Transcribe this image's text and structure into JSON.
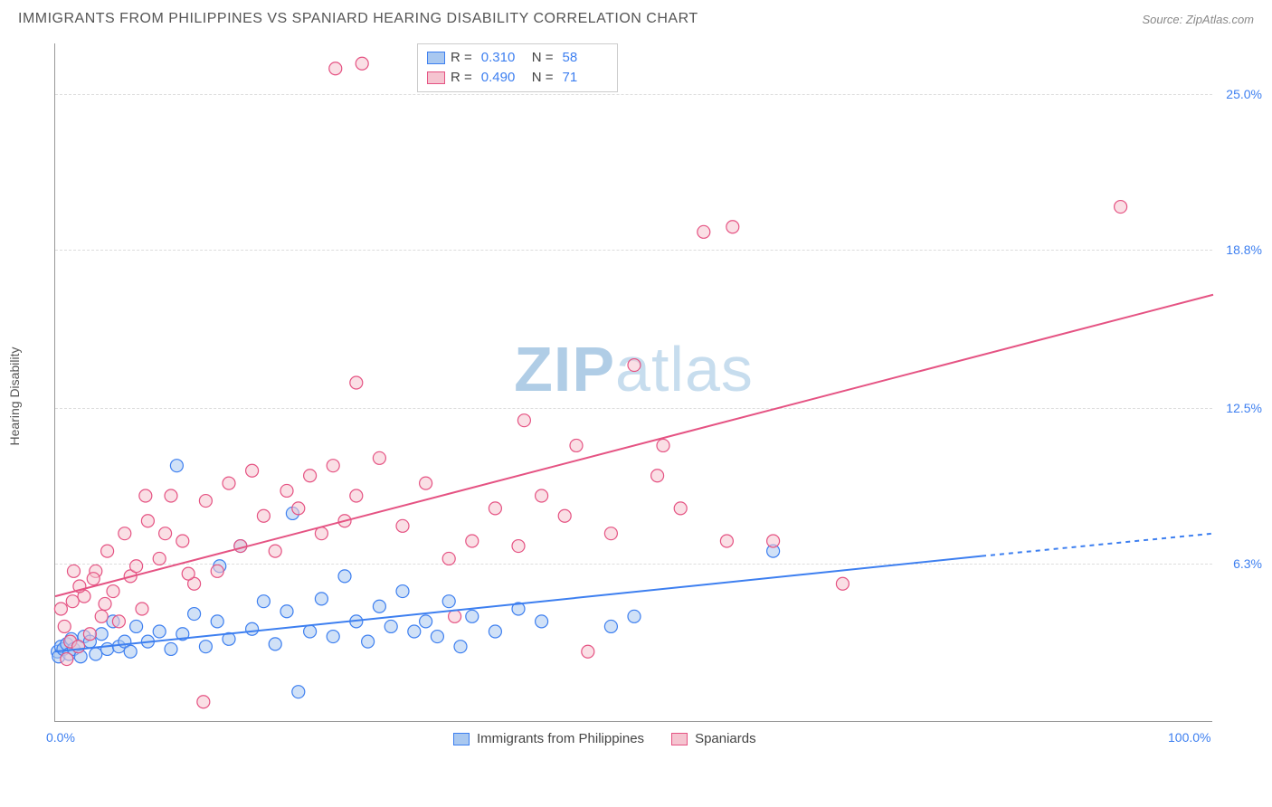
{
  "title": "IMMIGRANTS FROM PHILIPPINES VS SPANIARD HEARING DISABILITY CORRELATION CHART",
  "source": "Source: ZipAtlas.com",
  "ylabel": "Hearing Disability",
  "watermark": {
    "zip": "ZIP",
    "rest": "atlas"
  },
  "chart": {
    "type": "scatter",
    "background_color": "#ffffff",
    "grid_color": "#dddddd",
    "axis_color": "#999999",
    "xlim": [
      0,
      100
    ],
    "ylim": [
      0,
      27
    ],
    "y_ticks": [
      {
        "value": 6.3,
        "label": "6.3%"
      },
      {
        "value": 12.5,
        "label": "12.5%"
      },
      {
        "value": 18.8,
        "label": "18.8%"
      },
      {
        "value": 25.0,
        "label": "25.0%"
      }
    ],
    "x_ticks": [
      {
        "value": 0,
        "label": "0.0%"
      },
      {
        "value": 100,
        "label": "100.0%"
      }
    ],
    "marker_radius": 7,
    "marker_stroke_width": 1.2,
    "marker_opacity": 0.55,
    "line_width": 2,
    "series": [
      {
        "name": "Immigrants from Philippines",
        "fill_color": "#a9c8f0",
        "stroke_color": "#3d7ff0",
        "R": "0.310",
        "N": "58",
        "trend": {
          "x1": 0,
          "y1": 2.8,
          "x2": 80,
          "y2": 6.6,
          "dash_x2": 100,
          "dash_y2": 7.5,
          "dash_pattern": "5,5"
        },
        "points": [
          {
            "x": 0.2,
            "y": 2.8
          },
          {
            "x": 0.3,
            "y": 2.6
          },
          {
            "x": 0.5,
            "y": 3.0
          },
          {
            "x": 0.7,
            "y": 2.9
          },
          {
            "x": 1.0,
            "y": 3.1
          },
          {
            "x": 1.2,
            "y": 2.7
          },
          {
            "x": 1.4,
            "y": 3.3
          },
          {
            "x": 1.6,
            "y": 2.9
          },
          {
            "x": 2.0,
            "y": 3.0
          },
          {
            "x": 2.2,
            "y": 2.6
          },
          {
            "x": 2.5,
            "y": 3.4
          },
          {
            "x": 3.0,
            "y": 3.2
          },
          {
            "x": 3.5,
            "y": 2.7
          },
          {
            "x": 4.0,
            "y": 3.5
          },
          {
            "x": 4.5,
            "y": 2.9
          },
          {
            "x": 5.0,
            "y": 4.0
          },
          {
            "x": 5.5,
            "y": 3.0
          },
          {
            "x": 6.0,
            "y": 3.2
          },
          {
            "x": 6.5,
            "y": 2.8
          },
          {
            "x": 7.0,
            "y": 3.8
          },
          {
            "x": 8.0,
            "y": 3.2
          },
          {
            "x": 9.0,
            "y": 3.6
          },
          {
            "x": 10.0,
            "y": 2.9
          },
          {
            "x": 11.0,
            "y": 3.5
          },
          {
            "x": 12.0,
            "y": 4.3
          },
          {
            "x": 13.0,
            "y": 3.0
          },
          {
            "x": 14.0,
            "y": 4.0
          },
          {
            "x": 15.0,
            "y": 3.3
          },
          {
            "x": 16.0,
            "y": 7.0
          },
          {
            "x": 17.0,
            "y": 3.7
          },
          {
            "x": 18.0,
            "y": 4.8
          },
          {
            "x": 19.0,
            "y": 3.1
          },
          {
            "x": 20.0,
            "y": 4.4
          },
          {
            "x": 20.5,
            "y": 8.3
          },
          {
            "x": 21.0,
            "y": 1.2
          },
          {
            "x": 22.0,
            "y": 3.6
          },
          {
            "x": 23.0,
            "y": 4.9
          },
          {
            "x": 24.0,
            "y": 3.4
          },
          {
            "x": 25.0,
            "y": 5.8
          },
          {
            "x": 26.0,
            "y": 4.0
          },
          {
            "x": 27.0,
            "y": 3.2
          },
          {
            "x": 28.0,
            "y": 4.6
          },
          {
            "x": 29.0,
            "y": 3.8
          },
          {
            "x": 30.0,
            "y": 5.2
          },
          {
            "x": 31.0,
            "y": 3.6
          },
          {
            "x": 32.0,
            "y": 4.0
          },
          {
            "x": 33.0,
            "y": 3.4
          },
          {
            "x": 34.0,
            "y": 4.8
          },
          {
            "x": 35.0,
            "y": 3.0
          },
          {
            "x": 10.5,
            "y": 10.2
          },
          {
            "x": 36.0,
            "y": 4.2
          },
          {
            "x": 38.0,
            "y": 3.6
          },
          {
            "x": 40.0,
            "y": 4.5
          },
          {
            "x": 42.0,
            "y": 4.0
          },
          {
            "x": 48.0,
            "y": 3.8
          },
          {
            "x": 50.0,
            "y": 4.2
          },
          {
            "x": 62.0,
            "y": 6.8
          },
          {
            "x": 14.2,
            "y": 6.2
          }
        ]
      },
      {
        "name": "Spaniards",
        "fill_color": "#f5c4d0",
        "stroke_color": "#e55383",
        "R": "0.490",
        "N": "71",
        "trend": {
          "x1": 0,
          "y1": 5.0,
          "x2": 100,
          "y2": 17.0
        },
        "points": [
          {
            "x": 0.5,
            "y": 4.5
          },
          {
            "x": 0.8,
            "y": 3.8
          },
          {
            "x": 1.0,
            "y": 2.5
          },
          {
            "x": 1.3,
            "y": 3.2
          },
          {
            "x": 1.5,
            "y": 4.8
          },
          {
            "x": 2.0,
            "y": 3.0
          },
          {
            "x": 2.5,
            "y": 5.0
          },
          {
            "x": 3.0,
            "y": 3.5
          },
          {
            "x": 3.5,
            "y": 6.0
          },
          {
            "x": 4.0,
            "y": 4.2
          },
          {
            "x": 4.5,
            "y": 6.8
          },
          {
            "x": 5.0,
            "y": 5.2
          },
          {
            "x": 5.5,
            "y": 4.0
          },
          {
            "x": 6.0,
            "y": 7.5
          },
          {
            "x": 6.5,
            "y": 5.8
          },
          {
            "x": 7.0,
            "y": 6.2
          },
          {
            "x": 7.5,
            "y": 4.5
          },
          {
            "x": 8.0,
            "y": 8.0
          },
          {
            "x": 9.0,
            "y": 6.5
          },
          {
            "x": 10.0,
            "y": 9.0
          },
          {
            "x": 11.0,
            "y": 7.2
          },
          {
            "x": 12.0,
            "y": 5.5
          },
          {
            "x": 12.8,
            "y": 0.8
          },
          {
            "x": 13.0,
            "y": 8.8
          },
          {
            "x": 14.0,
            "y": 6.0
          },
          {
            "x": 15.0,
            "y": 9.5
          },
          {
            "x": 16.0,
            "y": 7.0
          },
          {
            "x": 17.0,
            "y": 10.0
          },
          {
            "x": 18.0,
            "y": 8.2
          },
          {
            "x": 19.0,
            "y": 6.8
          },
          {
            "x": 20.0,
            "y": 9.2
          },
          {
            "x": 21.0,
            "y": 8.5
          },
          {
            "x": 22.0,
            "y": 9.8
          },
          {
            "x": 23.0,
            "y": 7.5
          },
          {
            "x": 24.0,
            "y": 10.2
          },
          {
            "x": 25.0,
            "y": 8.0
          },
          {
            "x": 26.0,
            "y": 9.0
          },
          {
            "x": 24.2,
            "y": 26.0
          },
          {
            "x": 26.5,
            "y": 26.2
          },
          {
            "x": 26.0,
            "y": 13.5
          },
          {
            "x": 28.0,
            "y": 10.5
          },
          {
            "x": 30.0,
            "y": 7.8
          },
          {
            "x": 32.0,
            "y": 9.5
          },
          {
            "x": 34.0,
            "y": 6.5
          },
          {
            "x": 36.0,
            "y": 7.2
          },
          {
            "x": 38.0,
            "y": 8.5
          },
          {
            "x": 40.0,
            "y": 7.0
          },
          {
            "x": 40.5,
            "y": 12.0
          },
          {
            "x": 42.0,
            "y": 9.0
          },
          {
            "x": 44.0,
            "y": 8.2
          },
          {
            "x": 45.0,
            "y": 11.0
          },
          {
            "x": 46.0,
            "y": 2.8
          },
          {
            "x": 48.0,
            "y": 7.5
          },
          {
            "x": 50.0,
            "y": 14.2
          },
          {
            "x": 52.0,
            "y": 9.8
          },
          {
            "x": 52.5,
            "y": 11.0
          },
          {
            "x": 54.0,
            "y": 8.5
          },
          {
            "x": 56.0,
            "y": 19.5
          },
          {
            "x": 58.0,
            "y": 7.2
          },
          {
            "x": 58.5,
            "y": 19.7
          },
          {
            "x": 62.0,
            "y": 7.2
          },
          {
            "x": 68.0,
            "y": 5.5
          },
          {
            "x": 92.0,
            "y": 20.5
          },
          {
            "x": 7.8,
            "y": 9.0
          },
          {
            "x": 1.6,
            "y": 6.0
          },
          {
            "x": 2.1,
            "y": 5.4
          },
          {
            "x": 3.3,
            "y": 5.7
          },
          {
            "x": 4.3,
            "y": 4.7
          },
          {
            "x": 9.5,
            "y": 7.5
          },
          {
            "x": 11.5,
            "y": 5.9
          },
          {
            "x": 34.5,
            "y": 4.2
          }
        ]
      }
    ]
  },
  "legend_top_labels": {
    "R": "R =",
    "N": "N ="
  },
  "legend_bottom": [
    {
      "series": 0
    },
    {
      "series": 1
    }
  ]
}
